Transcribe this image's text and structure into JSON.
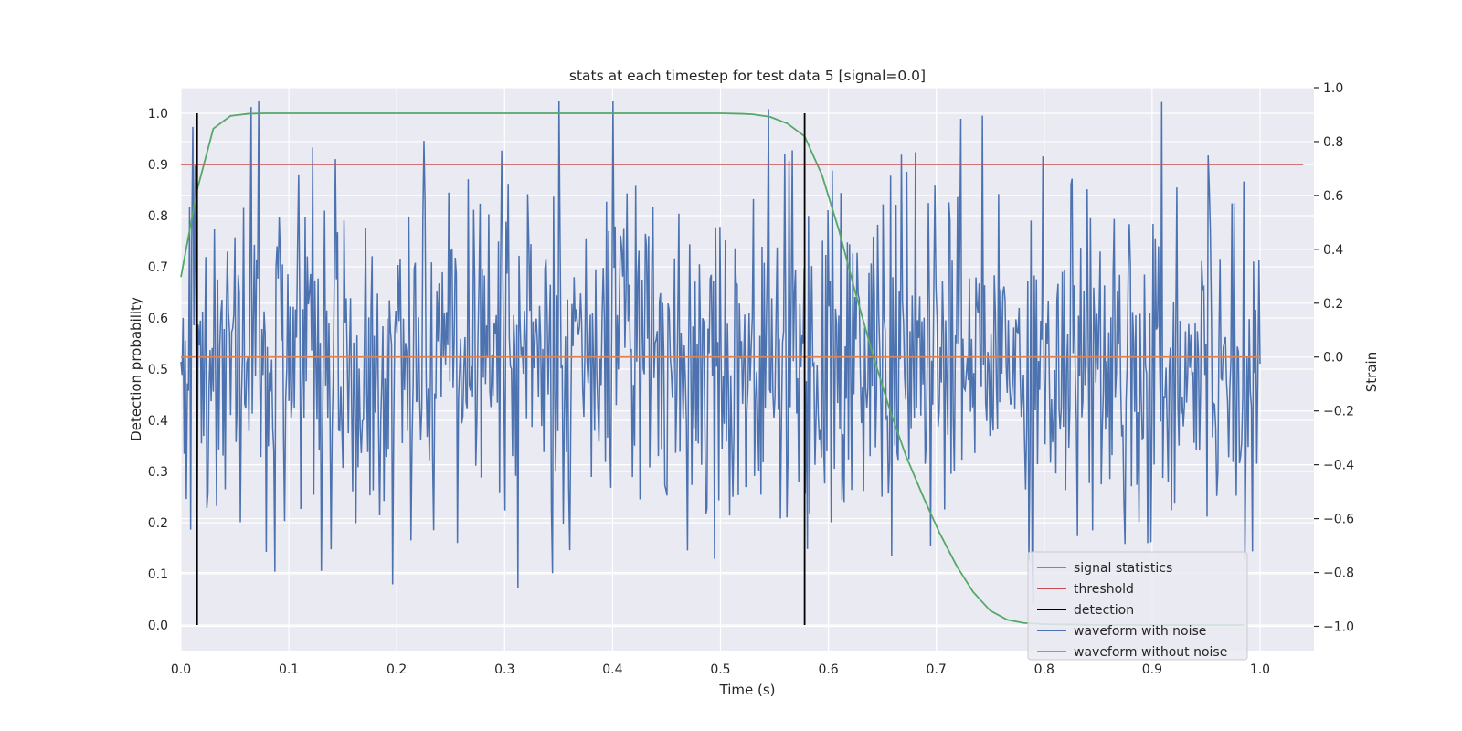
{
  "chart_data": {
    "type": "line",
    "title": "stats at each timestep for test data 5 [signal=0.0]",
    "xlabel": "Time (s)",
    "ylabel": "Detection probability",
    "y2label": "Strain",
    "xlim": [
      0.0,
      1.05
    ],
    "ylim": [
      -0.05,
      1.05
    ],
    "y2lim": [
      -1.09,
      1.0
    ],
    "xticks": [
      0.0,
      0.1,
      0.2,
      0.3,
      0.4,
      0.5,
      0.6,
      0.7,
      0.8,
      0.9,
      1.0
    ],
    "xtick_labels": [
      "0.0",
      "0.1",
      "0.2",
      "0.3",
      "0.4",
      "0.5",
      "0.6",
      "0.7",
      "0.8",
      "0.9",
      "1.0"
    ],
    "yticks": [
      0.0,
      0.1,
      0.2,
      0.3,
      0.4,
      0.5,
      0.6,
      0.7,
      0.8,
      0.9,
      1.0
    ],
    "ytick_labels": [
      "0.0",
      "0.1",
      "0.2",
      "0.3",
      "0.4",
      "0.5",
      "0.6",
      "0.7",
      "0.8",
      "0.9",
      "1.0"
    ],
    "y2ticks": [
      -1.0,
      -0.8,
      -0.6,
      -0.4,
      -0.2,
      0.0,
      0.2,
      0.4,
      0.6,
      0.8,
      1.0
    ],
    "y2tick_labels": [
      "−1.0",
      "−0.8",
      "−0.6",
      "−0.4",
      "−0.2",
      "0.0",
      "0.2",
      "0.4",
      "0.6",
      "0.8",
      "1.0"
    ],
    "grid": true,
    "legend_position": "lower-right",
    "series": [
      {
        "name": "signal statistics",
        "axis": "left",
        "color": "#55a868",
        "x": [
          0.0,
          0.015,
          0.03,
          0.046,
          0.062,
          0.078,
          0.1,
          0.2,
          0.3,
          0.4,
          0.5,
          0.52,
          0.53,
          0.546,
          0.562,
          0.578,
          0.594,
          0.61,
          0.625,
          0.641,
          0.657,
          0.672,
          0.688,
          0.703,
          0.719,
          0.734,
          0.75,
          0.766,
          0.781,
          0.797,
          0.813,
          0.828,
          0.844,
          0.86,
          0.875,
          0.9,
          0.95,
          0.985
        ],
        "y": [
          0.68,
          0.85,
          0.97,
          0.995,
          0.999,
          1.0,
          1.0,
          1.0,
          1.0,
          1.0,
          1.0,
          0.999,
          0.998,
          0.993,
          0.98,
          0.955,
          0.88,
          0.77,
          0.65,
          0.53,
          0.42,
          0.33,
          0.25,
          0.18,
          0.115,
          0.065,
          0.028,
          0.01,
          0.004,
          0.002,
          0.001,
          0.001,
          0.0,
          0.0,
          0.0,
          0.0,
          0.0,
          0.0
        ]
      },
      {
        "name": "threshold",
        "axis": "left",
        "color": "#c44e52",
        "x": [
          0.0,
          1.04
        ],
        "y": [
          0.9,
          0.9
        ]
      },
      {
        "name": "detection",
        "axis": "left",
        "color": "#000000",
        "vlines_x": [
          0.015,
          0.578
        ],
        "y": [
          0.0,
          1.0
        ]
      },
      {
        "name": "waveform with noise",
        "axis": "right",
        "color": "#4c72b0",
        "sample_count": 1000,
        "x_range": [
          0.0,
          1.0
        ],
        "std": 0.33,
        "ylim_clip": [
          -0.95,
          0.95
        ]
      },
      {
        "name": "waveform without noise",
        "axis": "right",
        "color": "#dd8452",
        "x": [
          0.0,
          1.0
        ],
        "y": [
          0.0,
          0.0
        ]
      }
    ]
  }
}
